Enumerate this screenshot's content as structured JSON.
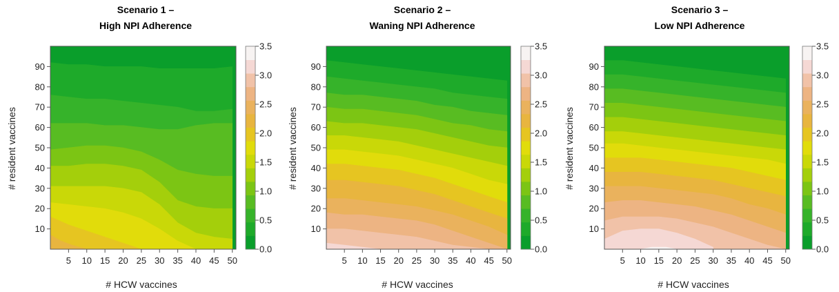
{
  "chart_data": [
    {
      "type": "heatmap",
      "title_line1": "Scenario 1 –",
      "title_line2": "High NPI Adherence",
      "xlabel": "# HCW vaccines",
      "ylabel": "# resident vaccines",
      "xlim": [
        0,
        51
      ],
      "ylim": [
        0,
        100
      ],
      "xticks": [
        5,
        10,
        15,
        20,
        25,
        30,
        35,
        40,
        45,
        50
      ],
      "yticks": [
        10,
        20,
        30,
        40,
        50,
        60,
        70,
        80,
        90
      ],
      "contour_boundaries": [
        {
          "level": 0.25,
          "x": [
            0,
            5,
            10,
            15,
            20,
            25,
            30,
            35,
            40,
            45,
            50
          ],
          "y": [
            92,
            91,
            91,
            90,
            90,
            90,
            89,
            89,
            89,
            89,
            90
          ]
        },
        {
          "level": 0.5,
          "x": [
            0,
            5,
            10,
            15,
            20,
            25,
            30,
            35,
            40,
            45,
            50
          ],
          "y": [
            76,
            75,
            74,
            74,
            73,
            72,
            71,
            70,
            68,
            68,
            69
          ]
        },
        {
          "level": 0.75,
          "x": [
            0,
            5,
            10,
            15,
            20,
            25,
            30,
            35,
            40,
            45,
            50
          ],
          "y": [
            62,
            62,
            62,
            61,
            61,
            60,
            59,
            59,
            61,
            62,
            62
          ]
        },
        {
          "level": 1.0,
          "x": [
            0,
            5,
            10,
            15,
            20,
            25,
            30,
            35,
            40,
            45,
            50
          ],
          "y": [
            49,
            50,
            51,
            51,
            50,
            48,
            44,
            39,
            37,
            36,
            36
          ]
        },
        {
          "level": 1.25,
          "x": [
            0,
            5,
            10,
            15,
            20,
            25,
            30,
            35,
            40,
            45,
            50
          ],
          "y": [
            41,
            41,
            42,
            42,
            41,
            39,
            33,
            24,
            21,
            20,
            20
          ]
        },
        {
          "level": 1.5,
          "x": [
            0,
            5,
            10,
            15,
            20,
            25,
            30,
            35,
            40,
            45,
            50
          ],
          "y": [
            31,
            31,
            31,
            31,
            30,
            28,
            22,
            13,
            8,
            6,
            5
          ]
        },
        {
          "level": 1.75,
          "x": [
            0,
            5,
            10,
            15,
            20,
            25,
            30,
            35,
            40,
            45,
            50
          ],
          "y": [
            23,
            22,
            21,
            20,
            18,
            15,
            10,
            4,
            0,
            0,
            0
          ]
        },
        {
          "level": 2.0,
          "x": [
            0,
            5,
            10,
            15,
            20,
            25
          ],
          "y": [
            16,
            12,
            9,
            6,
            3,
            0
          ]
        },
        {
          "level": 2.25,
          "x": [
            0,
            3,
            6,
            10
          ],
          "y": [
            7,
            4,
            2,
            0
          ]
        },
        {
          "level": 2.5,
          "x": [
            0,
            1
          ],
          "y": [
            0.5,
            0
          ]
        }
      ]
    },
    {
      "type": "heatmap",
      "title_line1": "Scenario 2 –",
      "title_line2": "Waning NPI Adherence",
      "xlabel": "# HCW vaccines",
      "ylabel": "# resident vaccines",
      "xlim": [
        0,
        51
      ],
      "ylim": [
        0,
        100
      ],
      "xticks": [
        5,
        10,
        15,
        20,
        25,
        30,
        35,
        40,
        45,
        50
      ],
      "yticks": [
        10,
        20,
        30,
        40,
        50,
        60,
        70,
        80,
        90
      ],
      "contour_boundaries": [
        {
          "level": 0.25,
          "x": [
            0,
            5,
            10,
            15,
            20,
            25,
            30,
            35,
            40,
            45,
            50
          ],
          "y": [
            93,
            92,
            91,
            90,
            89,
            88,
            87,
            86,
            85,
            84,
            83
          ]
        },
        {
          "level": 0.5,
          "x": [
            0,
            5,
            10,
            15,
            20,
            25,
            30,
            35,
            40,
            45,
            50
          ],
          "y": [
            85,
            84,
            83,
            82,
            81,
            80,
            79,
            77,
            76,
            75,
            74
          ]
        },
        {
          "level": 0.75,
          "x": [
            0,
            5,
            10,
            15,
            20,
            25,
            30,
            35,
            40,
            45,
            50
          ],
          "y": [
            77,
            76,
            76,
            75,
            74,
            73,
            71,
            70,
            68,
            67,
            66
          ]
        },
        {
          "level": 1.0,
          "x": [
            0,
            5,
            10,
            15,
            20,
            25,
            30,
            35,
            40,
            45,
            50
          ],
          "y": [
            70,
            69,
            69,
            68,
            67,
            66,
            64,
            62,
            61,
            59,
            58
          ]
        },
        {
          "level": 1.25,
          "x": [
            0,
            5,
            10,
            15,
            20,
            25,
            30,
            35,
            40,
            45,
            50
          ],
          "y": [
            63,
            62,
            62,
            61,
            60,
            59,
            57,
            55,
            53,
            51,
            50
          ]
        },
        {
          "level": 1.5,
          "x": [
            0,
            5,
            10,
            15,
            20,
            25,
            30,
            35,
            40,
            45,
            50
          ],
          "y": [
            56,
            56,
            55,
            54,
            53,
            51,
            49,
            47,
            45,
            43,
            41
          ]
        },
        {
          "level": 1.75,
          "x": [
            0,
            5,
            10,
            15,
            20,
            25,
            30,
            35,
            40,
            45,
            50
          ],
          "y": [
            49,
            49,
            48,
            47,
            46,
            44,
            42,
            40,
            37,
            34,
            32
          ]
        },
        {
          "level": 2.0,
          "x": [
            0,
            5,
            10,
            15,
            20,
            25,
            30,
            35,
            40,
            45,
            50
          ],
          "y": [
            42,
            42,
            41,
            40,
            39,
            37,
            35,
            32,
            29,
            26,
            23
          ]
        },
        {
          "level": 2.25,
          "x": [
            0,
            5,
            10,
            15,
            20,
            25,
            30,
            35,
            40,
            45,
            50
          ],
          "y": [
            34,
            34,
            33,
            32,
            31,
            29,
            27,
            24,
            21,
            18,
            15
          ]
        },
        {
          "level": 2.5,
          "x": [
            0,
            5,
            10,
            15,
            20,
            25,
            30,
            35,
            40,
            45,
            50
          ],
          "y": [
            25,
            25,
            24,
            23,
            22,
            21,
            19,
            17,
            14,
            11,
            7
          ]
        },
        {
          "level": 2.75,
          "x": [
            0,
            5,
            10,
            15,
            20,
            25,
            30,
            35,
            40,
            45,
            50
          ],
          "y": [
            18,
            17,
            17,
            16,
            15,
            14,
            12,
            9,
            6,
            3,
            0
          ]
        },
        {
          "level": 3.0,
          "x": [
            0,
            5,
            10,
            15,
            20,
            25,
            30,
            35,
            40,
            45
          ],
          "y": [
            10,
            10,
            9,
            8,
            7,
            6,
            4,
            2,
            1,
            0
          ]
        },
        {
          "level": 3.25,
          "x": [
            0,
            5,
            10,
            15
          ],
          "y": [
            3,
            2,
            1,
            0
          ]
        }
      ]
    },
    {
      "type": "heatmap",
      "title_line1": "Scenario 3 –",
      "title_line2": "Low NPI Adherence",
      "xlabel": "# HCW vaccines",
      "ylabel": "# resident vaccines",
      "xlim": [
        0,
        51
      ],
      "ylim": [
        0,
        100
      ],
      "xticks": [
        5,
        10,
        15,
        20,
        25,
        30,
        35,
        40,
        45,
        50
      ],
      "yticks": [
        10,
        20,
        30,
        40,
        50,
        60,
        70,
        80,
        90
      ],
      "contour_boundaries": [
        {
          "level": 0.25,
          "x": [
            0,
            5,
            10,
            15,
            20,
            25,
            30,
            35,
            40,
            45,
            50
          ],
          "y": [
            93,
            93,
            92,
            91,
            90,
            89,
            88,
            87,
            86,
            85,
            84
          ]
        },
        {
          "level": 0.5,
          "x": [
            0,
            5,
            10,
            15,
            20,
            25,
            30,
            35,
            40,
            45,
            50
          ],
          "y": [
            86,
            86,
            85,
            84,
            83,
            82,
            81,
            80,
            79,
            78,
            77
          ]
        },
        {
          "level": 0.75,
          "x": [
            0,
            5,
            10,
            15,
            20,
            25,
            30,
            35,
            40,
            45,
            50
          ],
          "y": [
            79,
            79,
            78,
            77,
            76,
            75,
            74,
            73,
            72,
            71,
            70
          ]
        },
        {
          "level": 1.0,
          "x": [
            0,
            5,
            10,
            15,
            20,
            25,
            30,
            35,
            40,
            45,
            50
          ],
          "y": [
            72,
            72,
            71,
            70,
            69,
            68,
            67,
            66,
            65,
            64,
            63
          ]
        },
        {
          "level": 1.25,
          "x": [
            0,
            5,
            10,
            15,
            20,
            25,
            30,
            35,
            40,
            45,
            50
          ],
          "y": [
            65,
            65,
            64,
            63,
            62,
            61,
            60,
            59,
            58,
            57,
            56
          ]
        },
        {
          "level": 1.5,
          "x": [
            0,
            5,
            10,
            15,
            20,
            25,
            30,
            35,
            40,
            45,
            50
          ],
          "y": [
            58,
            58,
            57,
            56,
            55,
            54,
            53,
            52,
            51,
            50,
            49
          ]
        },
        {
          "level": 1.75,
          "x": [
            0,
            5,
            10,
            15,
            20,
            25,
            30,
            35,
            40,
            45,
            50
          ],
          "y": [
            52,
            52,
            51,
            50,
            49,
            48,
            47,
            46,
            45,
            44,
            42
          ]
        },
        {
          "level": 2.0,
          "x": [
            0,
            5,
            10,
            15,
            20,
            25,
            30,
            35,
            40,
            45,
            50
          ],
          "y": [
            45,
            45,
            45,
            44,
            43,
            42,
            41,
            40,
            38,
            36,
            34
          ]
        },
        {
          "level": 2.25,
          "x": [
            0,
            5,
            10,
            15,
            20,
            25,
            30,
            35,
            40,
            45,
            50
          ],
          "y": [
            38,
            38,
            38,
            37,
            36,
            35,
            34,
            32,
            30,
            28,
            26
          ]
        },
        {
          "level": 2.5,
          "x": [
            0,
            5,
            10,
            15,
            20,
            25,
            30,
            35,
            40,
            45,
            50
          ],
          "y": [
            31,
            31,
            31,
            30,
            29,
            28,
            27,
            25,
            22,
            20,
            17
          ]
        },
        {
          "level": 2.75,
          "x": [
            0,
            5,
            10,
            15,
            20,
            25,
            30,
            35,
            40,
            45,
            50
          ],
          "y": [
            23,
            24,
            24,
            23,
            22,
            21,
            19,
            17,
            14,
            11,
            8
          ]
        },
        {
          "level": 3.0,
          "x": [
            0,
            5,
            10,
            15,
            20,
            25,
            30,
            35,
            40,
            45,
            50
          ],
          "y": [
            14,
            16,
            16,
            16,
            15,
            13,
            11,
            8,
            5,
            2,
            0
          ]
        },
        {
          "level": 3.25,
          "x": [
            0,
            5,
            10,
            15,
            20,
            25,
            30
          ],
          "y": [
            5,
            9,
            10,
            10,
            8,
            5,
            1
          ]
        },
        {
          "level": 3.5,
          "x": [
            10,
            13,
            17,
            20
          ],
          "y": [
            0,
            1,
            1,
            0
          ]
        }
      ]
    }
  ],
  "colorbar": {
    "min": 0,
    "max": 3.5,
    "ticks": [
      "0.0",
      "0.5",
      "1.0",
      "1.5",
      "2.0",
      "2.5",
      "3.0",
      "3.5"
    ],
    "band_colors": [
      "#0a9e2b",
      "#1eaa2a",
      "#36b32a",
      "#58bc22",
      "#7cc514",
      "#a4cf0b",
      "#c9d808",
      "#e1dc0b",
      "#e6c521",
      "#e8b53f",
      "#eab25d",
      "#edb483",
      "#f1c2a8",
      "#f5d8d4",
      "#f7f3f2"
    ]
  }
}
